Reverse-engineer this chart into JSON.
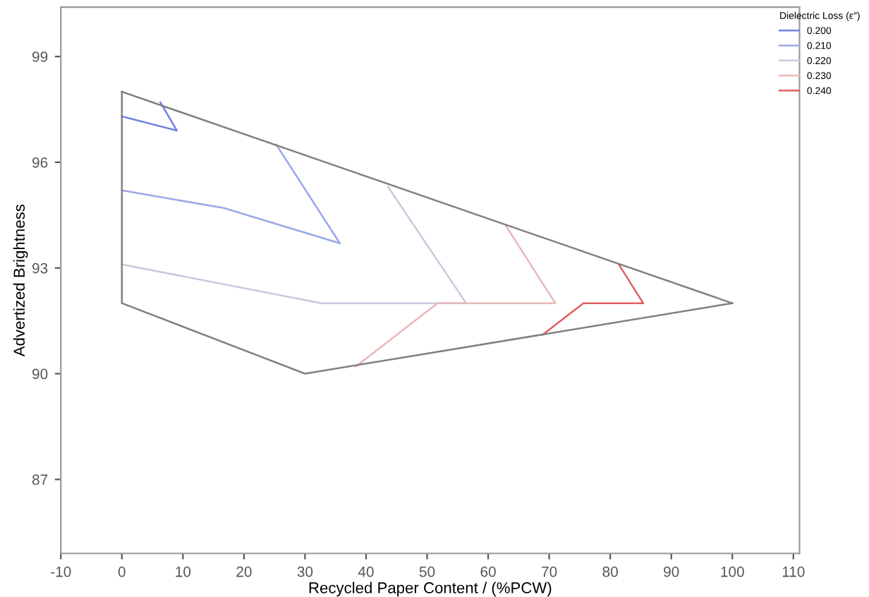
{
  "chart_data": {
    "type": "line",
    "xlabel": "Recycled Paper Content / (%PCW)",
    "ylabel": "Advertized Brightness",
    "legend_title": "Dielectric Loss (ε″)",
    "xlim": [
      -10,
      111
    ],
    "xticks": [
      -10,
      0,
      10,
      20,
      30,
      40,
      50,
      60,
      70,
      80,
      90,
      100,
      110
    ],
    "ylim": [
      84.9,
      100.4
    ],
    "yticks": [
      87,
      90,
      93,
      96,
      99
    ],
    "grid": false,
    "legend": "top right",
    "marker": "none",
    "line_style": "solid",
    "series": [
      {
        "name": "0.200",
        "color": "#7080e0",
        "x": [
          0,
          9,
          6.3
        ],
        "values": [
          97.3,
          96.9,
          97.7
        ]
      },
      {
        "name": "0.210",
        "color": "#98a8e8",
        "x": [
          0,
          16.7,
          35.7,
          25.3
        ],
        "values": [
          95.2,
          94.7,
          93.7,
          96.5
        ]
      },
      {
        "name": "0.220",
        "color": "#c8c8e0",
        "x": [
          0,
          32.7,
          56.4,
          43.6
        ],
        "values": [
          93.1,
          92,
          92,
          95.3
        ]
      },
      {
        "name": "0.230",
        "color": "#e8b8b8",
        "x": [
          38.3,
          51.7,
          71,
          62.9
        ],
        "values": [
          90.2,
          92,
          92,
          94.2
        ]
      },
      {
        "name": "0.240",
        "color": "#e06060",
        "x": [
          68.9,
          75.6,
          85.4,
          81.4
        ],
        "values": [
          91.1,
          92,
          92,
          93.1
        ]
      },
      {
        "color": "#808080",
        "x": [
          0,
          100
        ],
        "values": [
          98,
          92
        ]
      },
      {
        "color": "#808080",
        "x": [
          0,
          0,
          30,
          100
        ],
        "values": [
          98,
          92,
          90,
          92
        ]
      }
    ]
  }
}
